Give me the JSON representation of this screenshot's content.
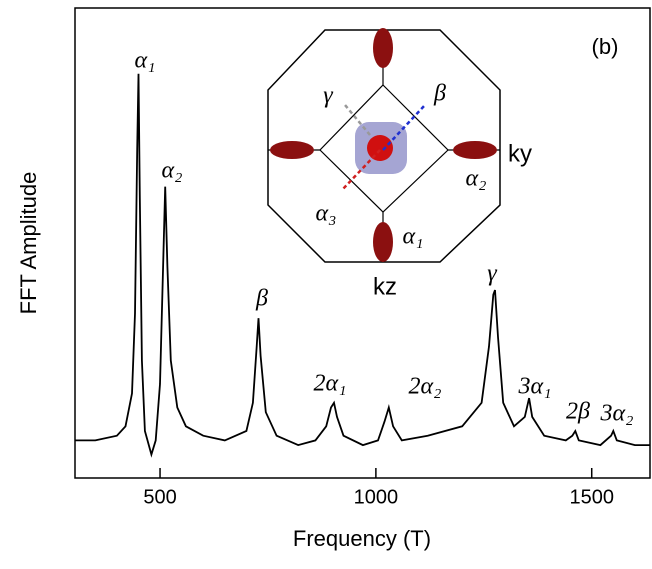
{
  "chart_data": {
    "type": "line",
    "xlabel": "Frequency (T)",
    "ylabel": "FFT Amplitude",
    "x": [
      303,
      350,
      400,
      420,
      435,
      442,
      447,
      450,
      453,
      458,
      465,
      480,
      490,
      500,
      507,
      512,
      517,
      525,
      540,
      560,
      600,
      650,
      700,
      715,
      724,
      728,
      733,
      745,
      770,
      820,
      860,
      885,
      896,
      903,
      910,
      925,
      970,
      1005,
      1020,
      1030,
      1040,
      1060,
      1120,
      1200,
      1245,
      1262,
      1272,
      1276,
      1283,
      1295,
      1320,
      1345,
      1355,
      1362,
      1390,
      1440,
      1455,
      1462,
      1470,
      1520,
      1545,
      1550,
      1558,
      1600,
      1635
    ],
    "values": [
      8,
      8,
      9,
      11,
      18,
      35,
      70,
      86,
      60,
      25,
      10,
      5,
      8,
      20,
      45,
      62,
      45,
      25,
      15,
      11,
      9,
      8,
      10,
      16,
      28,
      34,
      26,
      14,
      9,
      7,
      8,
      11,
      15,
      16,
      13,
      9,
      7,
      8,
      12,
      15,
      11,
      8,
      9,
      11,
      16,
      28,
      39,
      40,
      30,
      16,
      11,
      13,
      17,
      13,
      9,
      8,
      9,
      10,
      8,
      7,
      9,
      10,
      8,
      7,
      7
    ],
    "color": "#000000",
    "xlim": [
      303,
      1635
    ],
    "xticks": [
      500,
      1000,
      1500
    ],
    "ylim": [
      0,
      100
    ],
    "annotations": [
      "α₁",
      "α₂",
      "β",
      "2α₁",
      "2α₂",
      "γ",
      "3α₁",
      "2β",
      "3α₂",
      "(b)"
    ]
  },
  "inset": {
    "labels": [
      "γ",
      "β",
      "ky",
      "α₂",
      "α₃",
      "α₁",
      "kz"
    ]
  }
}
